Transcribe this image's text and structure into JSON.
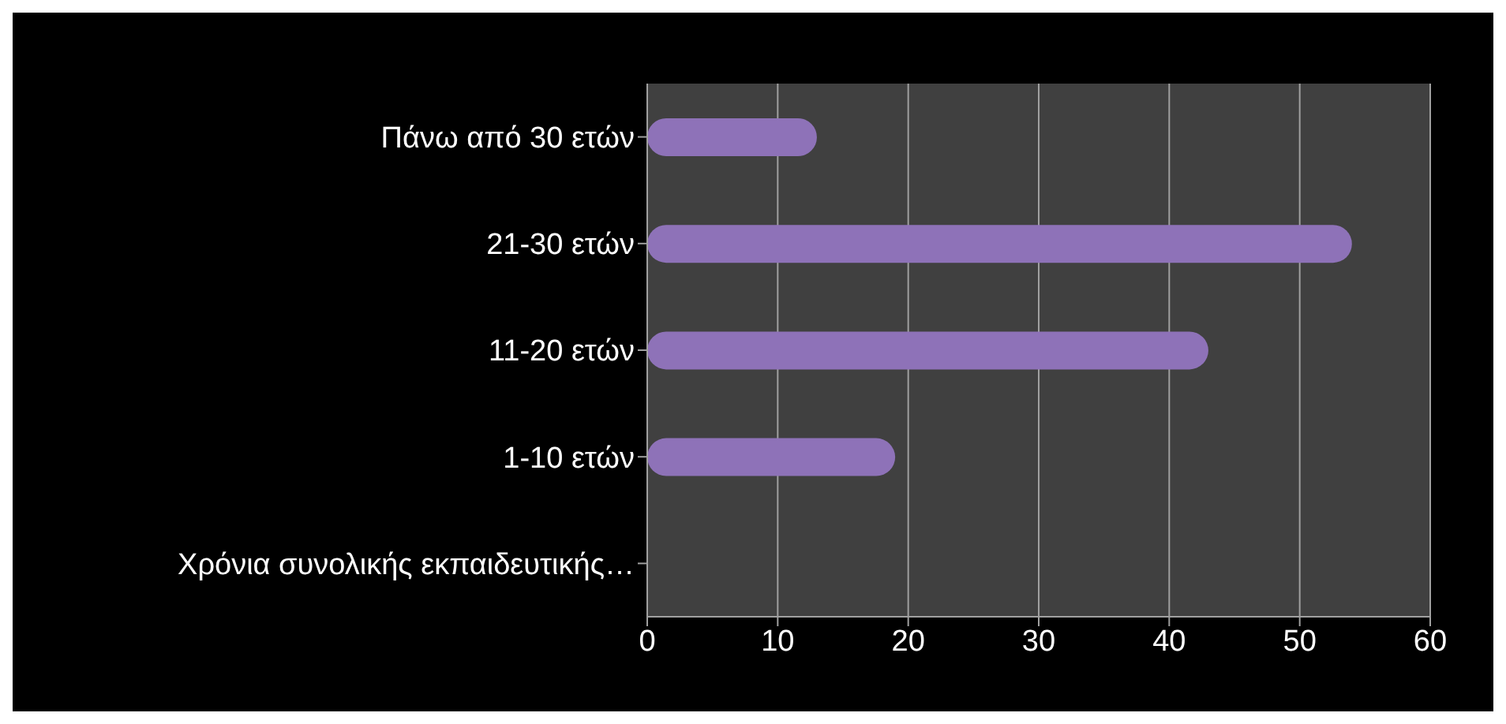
{
  "chart_data": {
    "type": "bar",
    "orientation": "horizontal",
    "categories": [
      "Πάνω από 30 ετών",
      "21-30 ετών",
      "11-20 ετών",
      "1-10 ετών",
      "Χρόνια συνολικής εκπαιδευτικής…"
    ],
    "values": [
      13,
      54,
      43,
      19,
      0
    ],
    "color": "#8e72b8",
    "xlim": [
      0,
      60
    ],
    "xticks": [
      0,
      10,
      20,
      30,
      40,
      50,
      60
    ],
    "grid": "x"
  }
}
